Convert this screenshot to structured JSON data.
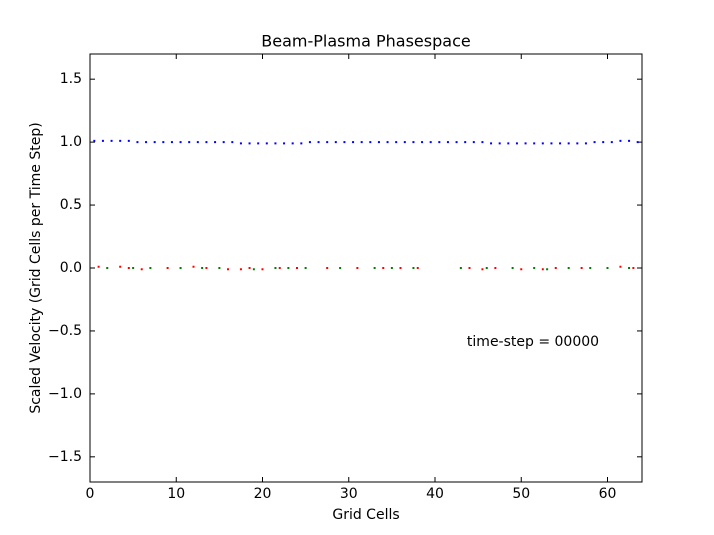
{
  "chart_data": {
    "type": "scatter",
    "title": "Beam-Plasma Phasespace",
    "x_label": "Grid Cells",
    "y_label": "Scaled Velocity (Grid Cells per Time Step)",
    "annotation": "time-step = 00000",
    "xlim": [
      0,
      64
    ],
    "ylim": [
      -1.7,
      1.7
    ],
    "xticks": [
      0,
      10,
      20,
      30,
      40,
      50,
      60
    ],
    "yticks": [
      {
        "value": -1.5,
        "label": "−1.5"
      },
      {
        "value": -1.0,
        "label": "−1.0"
      },
      {
        "value": -0.5,
        "label": "−0.5"
      },
      {
        "value": 0,
        "label": "0.0"
      },
      0.5,
      {
        "value": 1.0,
        "label": "1.0"
      },
      1.5
    ],
    "series": [
      {
        "color": "#0000ff",
        "x": [
          0.5,
          1.5,
          2.5,
          3.5,
          4.5,
          5.5,
          6.5,
          7.5,
          8.5,
          9.5,
          10.5,
          11.5,
          12.5,
          13.5,
          14.5,
          15.5,
          16.5,
          17.5,
          18.5,
          19.5,
          20.5,
          21.5,
          22.5,
          23.5,
          24.5,
          25.5,
          26.5,
          27.5,
          28.5,
          29.5,
          30.5,
          31.5,
          32.5,
          33.5,
          34.5,
          35.5,
          36.5,
          37.5,
          38.5,
          39.5,
          40.5,
          41.5,
          42.5,
          43.5,
          44.5,
          45.5,
          46.5,
          47.5,
          48.5,
          49.5,
          50.5,
          51.5,
          52.5,
          53.5,
          54.5,
          55.5,
          56.5,
          57.5,
          58.5,
          59.5,
          60.5,
          61.5,
          62.5,
          63.5
        ],
        "y": [
          1.01,
          1.01,
          1.01,
          1.01,
          1.01,
          1.0,
          1.0,
          1.0,
          1.0,
          1.0,
          1.0,
          1.0,
          1.0,
          1.0,
          1.0,
          1.0,
          1.0,
          0.99,
          0.99,
          0.99,
          0.99,
          0.99,
          0.99,
          0.99,
          0.99,
          1.0,
          1.0,
          1.0,
          1.0,
          1.0,
          1.0,
          1.0,
          1.0,
          1.0,
          1.0,
          1.0,
          1.0,
          1.0,
          1.0,
          1.0,
          1.0,
          1.0,
          1.0,
          1.0,
          1.0,
          1.0,
          0.99,
          0.99,
          0.99,
          0.99,
          0.99,
          0.99,
          0.99,
          0.99,
          0.99,
          0.99,
          0.99,
          0.99,
          1.0,
          1.0,
          1.0,
          1.01,
          1.01,
          1.0
        ]
      },
      {
        "color": "#ff0000",
        "x": [
          1,
          3.5,
          4.5,
          6,
          9,
          12,
          13.5,
          16,
          17.5,
          18.5,
          20,
          22,
          24,
          27.5,
          31,
          34,
          36,
          38,
          44,
          45.5,
          47,
          50,
          52.5,
          54,
          57,
          61.5,
          63
        ],
        "y": [
          0.01,
          0.01,
          0.0,
          -0.01,
          0.0,
          0.01,
          0.0,
          -0.01,
          -0.01,
          0.0,
          -0.01,
          0.0,
          0.0,
          0.0,
          0.0,
          0.0,
          0.0,
          0.0,
          0.0,
          -0.01,
          0.0,
          -0.01,
          -0.01,
          0.0,
          0.0,
          0.01,
          0.0
        ]
      },
      {
        "color": "#008000",
        "x": [
          2,
          5,
          7,
          10.5,
          13,
          15,
          19,
          21.5,
          23,
          25,
          29,
          33,
          35,
          37.5,
          43,
          46,
          49,
          51.5,
          53,
          55.5,
          58,
          60,
          62.5
        ],
        "y": [
          0.0,
          0.0,
          0.0,
          0.0,
          0.0,
          0.0,
          -0.01,
          0.0,
          0.0,
          0.0,
          0.0,
          0.0,
          0.0,
          0.0,
          0.0,
          0.0,
          0.0,
          0.0,
          -0.01,
          0.0,
          0.0,
          0.0,
          0.0
        ]
      }
    ]
  }
}
